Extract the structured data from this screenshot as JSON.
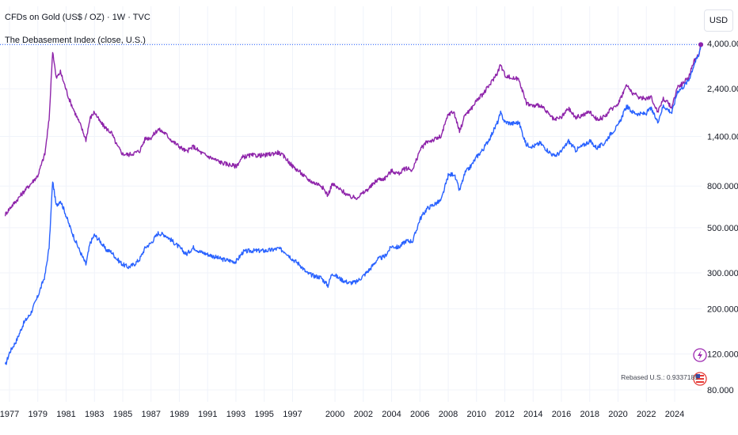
{
  "header": {
    "title": "CFDs on Gold (US$ / OZ) · 1W · TVC",
    "subtitle": "The Debasement Index (close, U.S.)",
    "currency": "USD"
  },
  "annotation": {
    "label": "Rebased U.S.: 0.9337185"
  },
  "colors": {
    "gold": "#2962ff",
    "index": "#8e24aa",
    "grid": "#f0f3fa",
    "dotted": "#2962ff",
    "badge_lightning": "#9c27b0",
    "badge_flag": "#e53935"
  },
  "icons": {
    "lightning": "lightning-icon",
    "flag": "us-flag-icon"
  },
  "chart_data": {
    "type": "line",
    "title": "CFDs on Gold (US$ / OZ) · 1W · TVC",
    "xlabel": "",
    "ylabel": "",
    "y_scale": "log",
    "ylim": [
      80,
      4000
    ],
    "grid": true,
    "x_ticks": [
      "1977",
      "1979",
      "1981",
      "1983",
      "1985",
      "1987",
      "1989",
      "1991",
      "1993",
      "1995",
      "1997",
      "2000",
      "2002",
      "2004",
      "2006",
      "2008",
      "2010",
      "2012",
      "2014",
      "2016",
      "2018",
      "2020",
      "2022",
      "2024"
    ],
    "y_ticks": [
      {
        "value": 4000,
        "label": "4,000.000"
      },
      {
        "value": 2400,
        "label": "2,400.000"
      },
      {
        "value": 1400,
        "label": "1,400.000"
      },
      {
        "value": 800,
        "label": "800.000"
      },
      {
        "value": 500,
        "label": "500.000"
      },
      {
        "value": 300,
        "label": "300.000"
      },
      {
        "value": 200,
        "label": "200.000"
      },
      {
        "value": 120,
        "label": "120.000"
      },
      {
        "value": 80,
        "label": "80.000"
      }
    ],
    "series": [
      {
        "name": "CFDs on Gold (US$ / OZ)",
        "points": [
          [
            1976.7,
            105
          ],
          [
            1977.0,
            122
          ],
          [
            1977.5,
            140
          ],
          [
            1978.0,
            170
          ],
          [
            1978.5,
            190
          ],
          [
            1979.0,
            230
          ],
          [
            1979.5,
            290
          ],
          [
            1979.8,
            400
          ],
          [
            1980.05,
            850
          ],
          [
            1980.3,
            640
          ],
          [
            1980.6,
            680
          ],
          [
            1980.9,
            600
          ],
          [
            1981.2,
            520
          ],
          [
            1981.6,
            440
          ],
          [
            1982.0,
            380
          ],
          [
            1982.4,
            330
          ],
          [
            1982.7,
            420
          ],
          [
            1983.0,
            460
          ],
          [
            1983.4,
            430
          ],
          [
            1983.8,
            390
          ],
          [
            1984.2,
            380
          ],
          [
            1984.6,
            350
          ],
          [
            1985.0,
            330
          ],
          [
            1985.4,
            320
          ],
          [
            1985.8,
            330
          ],
          [
            1986.2,
            350
          ],
          [
            1986.6,
            400
          ],
          [
            1987.0,
            420
          ],
          [
            1987.5,
            470
          ],
          [
            1988.0,
            460
          ],
          [
            1988.5,
            430
          ],
          [
            1989.0,
            400
          ],
          [
            1989.5,
            370
          ],
          [
            1990.0,
            400
          ],
          [
            1990.5,
            380
          ],
          [
            1991.0,
            370
          ],
          [
            1991.5,
            360
          ],
          [
            1992.0,
            350
          ],
          [
            1992.5,
            345
          ],
          [
            1993.0,
            340
          ],
          [
            1993.5,
            380
          ],
          [
            1994.0,
            385
          ],
          [
            1994.5,
            385
          ],
          [
            1995.0,
            385
          ],
          [
            1995.5,
            388
          ],
          [
            1996.0,
            395
          ],
          [
            1996.5,
            380
          ],
          [
            1997.0,
            350
          ],
          [
            1997.5,
            330
          ],
          [
            1998.0,
            300
          ],
          [
            1998.5,
            290
          ],
          [
            1999.0,
            285
          ],
          [
            1999.5,
            260
          ],
          [
            1999.8,
            300
          ],
          [
            2000.2,
            285
          ],
          [
            2000.6,
            275
          ],
          [
            2001.0,
            268
          ],
          [
            2001.5,
            270
          ],
          [
            2002.0,
            290
          ],
          [
            2002.5,
            315
          ],
          [
            2003.0,
            350
          ],
          [
            2003.5,
            360
          ],
          [
            2004.0,
            405
          ],
          [
            2004.5,
            400
          ],
          [
            2005.0,
            430
          ],
          [
            2005.5,
            430
          ],
          [
            2006.0,
            550
          ],
          [
            2006.5,
            620
          ],
          [
            2007.0,
            650
          ],
          [
            2007.5,
            680
          ],
          [
            2008.0,
            900
          ],
          [
            2008.4,
            920
          ],
          [
            2008.8,
            760
          ],
          [
            2009.2,
            930
          ],
          [
            2009.6,
            1000
          ],
          [
            2010.0,
            1110
          ],
          [
            2010.5,
            1220
          ],
          [
            2011.0,
            1400
          ],
          [
            2011.5,
            1650
          ],
          [
            2011.7,
            1820
          ],
          [
            2012.0,
            1650
          ],
          [
            2012.5,
            1620
          ],
          [
            2013.0,
            1640
          ],
          [
            2013.5,
            1280
          ],
          [
            2014.0,
            1250
          ],
          [
            2014.5,
            1300
          ],
          [
            2015.0,
            1200
          ],
          [
            2015.5,
            1120
          ],
          [
            2016.0,
            1180
          ],
          [
            2016.5,
            1330
          ],
          [
            2017.0,
            1200
          ],
          [
            2017.5,
            1260
          ],
          [
            2018.0,
            1330
          ],
          [
            2018.5,
            1230
          ],
          [
            2019.0,
            1290
          ],
          [
            2019.5,
            1450
          ],
          [
            2020.0,
            1580
          ],
          [
            2020.6,
            1970
          ],
          [
            2021.0,
            1850
          ],
          [
            2021.5,
            1800
          ],
          [
            2022.0,
            1820
          ],
          [
            2022.3,
            1930
          ],
          [
            2022.8,
            1650
          ],
          [
            2023.2,
            1980
          ],
          [
            2023.8,
            1830
          ],
          [
            2024.2,
            2330
          ],
          [
            2024.6,
            2450
          ],
          [
            2025.0,
            2650
          ],
          [
            2025.4,
            3200
          ],
          [
            2025.7,
            3500
          ],
          [
            2025.85,
            3950
          ]
        ]
      },
      {
        "name": "The Debasement Index (close, U.S.)",
        "points": [
          [
            1976.7,
            580
          ],
          [
            1977.0,
            620
          ],
          [
            1977.5,
            680
          ],
          [
            1978.0,
            750
          ],
          [
            1978.5,
            820
          ],
          [
            1979.0,
            900
          ],
          [
            1979.5,
            1150
          ],
          [
            1979.8,
            1700
          ],
          [
            1980.05,
            3700
          ],
          [
            1980.3,
            2700
          ],
          [
            1980.6,
            2900
          ],
          [
            1980.9,
            2500
          ],
          [
            1981.2,
            2150
          ],
          [
            1981.6,
            1850
          ],
          [
            1982.0,
            1600
          ],
          [
            1982.4,
            1350
          ],
          [
            1982.7,
            1720
          ],
          [
            1983.0,
            1850
          ],
          [
            1983.4,
            1650
          ],
          [
            1983.8,
            1540
          ],
          [
            1984.2,
            1460
          ],
          [
            1984.6,
            1260
          ],
          [
            1985.0,
            1150
          ],
          [
            1985.4,
            1140
          ],
          [
            1985.8,
            1160
          ],
          [
            1986.2,
            1190
          ],
          [
            1986.6,
            1370
          ],
          [
            1987.0,
            1380
          ],
          [
            1987.5,
            1520
          ],
          [
            1988.0,
            1450
          ],
          [
            1988.5,
            1330
          ],
          [
            1989.0,
            1250
          ],
          [
            1989.5,
            1180
          ],
          [
            1990.0,
            1250
          ],
          [
            1990.5,
            1170
          ],
          [
            1991.0,
            1120
          ],
          [
            1991.5,
            1080
          ],
          [
            1992.0,
            1040
          ],
          [
            1992.5,
            1020
          ],
          [
            1993.0,
            1000
          ],
          [
            1993.5,
            1110
          ],
          [
            1994.0,
            1130
          ],
          [
            1994.5,
            1130
          ],
          [
            1995.0,
            1130
          ],
          [
            1995.5,
            1150
          ],
          [
            1996.0,
            1170
          ],
          [
            1996.5,
            1100
          ],
          [
            1997.0,
            1000
          ],
          [
            1997.5,
            940
          ],
          [
            1998.0,
            870
          ],
          [
            1998.5,
            830
          ],
          [
            1999.0,
            810
          ],
          [
            1999.5,
            720
          ],
          [
            1999.8,
            820
          ],
          [
            2000.2,
            780
          ],
          [
            2000.6,
            750
          ],
          [
            2001.0,
            710
          ],
          [
            2001.5,
            700
          ],
          [
            2002.0,
            740
          ],
          [
            2002.5,
            790
          ],
          [
            2003.0,
            860
          ],
          [
            2003.5,
            870
          ],
          [
            2004.0,
            950
          ],
          [
            2004.5,
            920
          ],
          [
            2005.0,
            980
          ],
          [
            2005.5,
            960
          ],
          [
            2006.0,
            1200
          ],
          [
            2006.5,
            1320
          ],
          [
            2007.0,
            1350
          ],
          [
            2007.5,
            1400
          ],
          [
            2008.0,
            1800
          ],
          [
            2008.4,
            1850
          ],
          [
            2008.8,
            1480
          ],
          [
            2009.2,
            1800
          ],
          [
            2009.6,
            1900
          ],
          [
            2010.0,
            2100
          ],
          [
            2010.5,
            2280
          ],
          [
            2011.0,
            2550
          ],
          [
            2011.5,
            2900
          ],
          [
            2011.7,
            3150
          ],
          [
            2012.0,
            2800
          ],
          [
            2012.5,
            2700
          ],
          [
            2013.0,
            2680
          ],
          [
            2013.5,
            2050
          ],
          [
            2014.0,
            1970
          ],
          [
            2014.5,
            2000
          ],
          [
            2015.0,
            1830
          ],
          [
            2015.5,
            1680
          ],
          [
            2016.0,
            1740
          ],
          [
            2016.5,
            1920
          ],
          [
            2017.0,
            1730
          ],
          [
            2017.5,
            1780
          ],
          [
            2018.0,
            1850
          ],
          [
            2018.5,
            1700
          ],
          [
            2019.0,
            1740
          ],
          [
            2019.5,
            1900
          ],
          [
            2020.0,
            2030
          ],
          [
            2020.6,
            2500
          ],
          [
            2021.0,
            2300
          ],
          [
            2021.5,
            2170
          ],
          [
            2022.0,
            2150
          ],
          [
            2022.3,
            2200
          ],
          [
            2022.8,
            1850
          ],
          [
            2023.2,
            2150
          ],
          [
            2023.8,
            1950
          ],
          [
            2024.2,
            2450
          ],
          [
            2024.6,
            2550
          ],
          [
            2025.0,
            2750
          ],
          [
            2025.4,
            3300
          ],
          [
            2025.7,
            3550
          ],
          [
            2025.85,
            3950
          ]
        ]
      }
    ],
    "last_value": 3950
  }
}
